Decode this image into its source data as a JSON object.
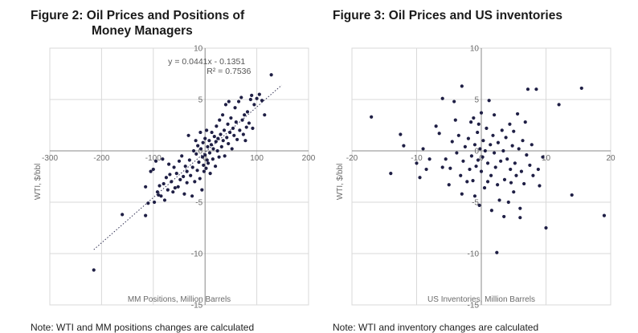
{
  "figures": [
    {
      "title_line1": "Figure 2: Oil Prices and Positions of",
      "title_line2": "Money Managers"
    },
    {
      "title": "Figure 3: Oil Prices and US inventories"
    }
  ],
  "notes": [
    "Note: WTI and MM positions changes are calculated",
    "Note: WTI and inventory changes are calculated"
  ],
  "chart_data": [
    {
      "type": "scatter",
      "title": "Figure 2: Oil Prices and Positions of Money Managers",
      "xlabel": "MM Positions, Million Barrels",
      "ylabel": "WTI, $/bbl",
      "xlim": [
        -300,
        200
      ],
      "ylim": [
        -15,
        10
      ],
      "x_ticks": [
        -300,
        -200,
        -100,
        0,
        100,
        200
      ],
      "y_ticks": [
        -15,
        -10,
        -5,
        0,
        5,
        10
      ],
      "x_tick_labels": [
        "-300",
        "-200",
        "-100",
        "0",
        "100",
        "200"
      ],
      "y_tick_labels": [
        "-15",
        "-10",
        "-5",
        "0",
        "5",
        "10"
      ],
      "grid": true,
      "trendline": {
        "type": "linear",
        "slope": 0.0441,
        "intercept": -0.1351,
        "x_range": [
          -215,
          148
        ]
      },
      "equation": "y = 0.0441x - 0.1351",
      "r_squared": "R² = 0.7536",
      "colors": {
        "points": "#1f1f45",
        "grid": "#d9d9d9",
        "axis": "#888888"
      },
      "points": [
        [
          -215,
          -11.6
        ],
        [
          -160,
          -6.2
        ],
        [
          -115,
          -6.3
        ],
        [
          -115,
          -3.5
        ],
        [
          -110,
          -5.1
        ],
        [
          -105,
          -2.0
        ],
        [
          -100,
          -1.8
        ],
        [
          -98,
          -5.0
        ],
        [
          -95,
          -1.0
        ],
        [
          -92,
          -4.0
        ],
        [
          -90,
          -4.3
        ],
        [
          -88,
          -3.4
        ],
        [
          -85,
          -4.4
        ],
        [
          -82,
          -0.8
        ],
        [
          -80,
          -3.2
        ],
        [
          -78,
          -4.8
        ],
        [
          -75,
          -2.6
        ],
        [
          -72,
          -3.8
        ],
        [
          -70,
          -1.3
        ],
        [
          -68,
          -2.3
        ],
        [
          -65,
          -3.0
        ],
        [
          -62,
          -4.0
        ],
        [
          -60,
          -1.6
        ],
        [
          -58,
          -3.6
        ],
        [
          -55,
          -2.2
        ],
        [
          -52,
          -3.5
        ],
        [
          -50,
          -1.0
        ],
        [
          -48,
          -2.8
        ],
        [
          -45,
          -0.5
        ],
        [
          -42,
          -2.5
        ],
        [
          -40,
          -4.2
        ],
        [
          -38,
          -1.5
        ],
        [
          -35,
          -2.0
        ],
        [
          -35,
          -3.1
        ],
        [
          -32,
          1.5
        ],
        [
          -30,
          -0.9
        ],
        [
          -28,
          -2.4
        ],
        [
          -25,
          -4.4
        ],
        [
          -24,
          -1.6
        ],
        [
          -22,
          0.0
        ],
        [
          -20,
          -3.0
        ],
        [
          -18,
          1.0
        ],
        [
          -17,
          -0.3
        ],
        [
          -15,
          -1.9
        ],
        [
          -14,
          0.5
        ],
        [
          -12,
          -1.1
        ],
        [
          -10,
          -2.7
        ],
        [
          -9,
          1.8
        ],
        [
          -8,
          0.2
        ],
        [
          -6,
          -3.8
        ],
        [
          -5,
          -0.6
        ],
        [
          -4,
          0.8
        ],
        [
          -3,
          -1.4
        ],
        [
          -2,
          -2.0
        ],
        [
          0,
          1.2
        ],
        [
          0,
          -0.4
        ],
        [
          2,
          -1.7
        ],
        [
          3,
          2.0
        ],
        [
          4,
          -0.9
        ],
        [
          5,
          0.4
        ],
        [
          6,
          -1.2
        ],
        [
          8,
          1.0
        ],
        [
          9,
          -0.2
        ],
        [
          10,
          -2.2
        ],
        [
          12,
          0.6
        ],
        [
          13,
          1.8
        ],
        [
          15,
          -0.8
        ],
        [
          16,
          0.2
        ],
        [
          18,
          1.4
        ],
        [
          20,
          -1.5
        ],
        [
          21,
          0.9
        ],
        [
          22,
          2.4
        ],
        [
          24,
          0.0
        ],
        [
          25,
          1.2
        ],
        [
          27,
          -0.6
        ],
        [
          28,
          3.0
        ],
        [
          30,
          1.6
        ],
        [
          32,
          0.4
        ],
        [
          34,
          3.5
        ],
        [
          35,
          1.0
        ],
        [
          37,
          2.0
        ],
        [
          38,
          -0.5
        ],
        [
          40,
          4.5
        ],
        [
          42,
          1.3
        ],
        [
          44,
          2.6
        ],
        [
          45,
          0.7
        ],
        [
          46,
          4.8
        ],
        [
          48,
          1.8
        ],
        [
          50,
          3.2
        ],
        [
          52,
          0.2
        ],
        [
          54,
          2.2
        ],
        [
          56,
          1.5
        ],
        [
          58,
          4.2
        ],
        [
          60,
          2.8
        ],
        [
          62,
          1.1
        ],
        [
          65,
          4.8
        ],
        [
          67,
          2.0
        ],
        [
          70,
          5.2
        ],
        [
          72,
          3.0
        ],
        [
          74,
          1.6
        ],
        [
          76,
          3.5
        ],
        [
          78,
          1.0
        ],
        [
          80,
          2.3
        ],
        [
          82,
          3.8
        ],
        [
          85,
          2.7
        ],
        [
          88,
          5.0
        ],
        [
          90,
          5.4
        ],
        [
          92,
          2.2
        ],
        [
          95,
          4.5
        ],
        [
          100,
          5.1
        ],
        [
          105,
          5.5
        ],
        [
          110,
          4.9
        ],
        [
          115,
          3.5
        ],
        [
          128,
          7.4
        ]
      ]
    },
    {
      "type": "scatter",
      "title": "Figure 3: Oil Prices and US inventories",
      "xlabel": "US Inventories, Million Barrels",
      "ylabel": "WTI, $/bbl",
      "xlim": [
        -20,
        20
      ],
      "ylim": [
        -15,
        10
      ],
      "x_ticks": [
        -20,
        -10,
        0,
        10,
        20
      ],
      "y_ticks": [
        -15,
        -10,
        -5,
        0,
        5,
        10
      ],
      "x_tick_labels": [
        "-20",
        "-10",
        "0",
        "10",
        "20"
      ],
      "y_tick_labels": [
        "-15",
        "-10",
        "-5",
        "0",
        "5",
        "10"
      ],
      "grid": true,
      "colors": {
        "points": "#1f1f45",
        "grid": "#d9d9d9",
        "axis": "#888888"
      },
      "points": [
        [
          -17,
          3.3
        ],
        [
          -12.5,
          1.6
        ],
        [
          -12,
          0.5
        ],
        [
          -10,
          -1.2
        ],
        [
          -9,
          0.2
        ],
        [
          -9.5,
          -2.6
        ],
        [
          -8,
          -0.8
        ],
        [
          -7,
          2.4
        ],
        [
          -6.5,
          1.7
        ],
        [
          -6,
          -1.6
        ],
        [
          -6,
          5.1
        ],
        [
          -5.5,
          -0.8
        ],
        [
          -5,
          -3.3
        ],
        [
          -4.8,
          -1.7
        ],
        [
          -4.5,
          0.9
        ],
        [
          -4.2,
          4.8
        ],
        [
          -4,
          3.0
        ],
        [
          -3.8,
          -0.2
        ],
        [
          -3.5,
          1.5
        ],
        [
          -3.2,
          -2.4
        ],
        [
          -3,
          6.3
        ],
        [
          -3,
          -4.2
        ],
        [
          -2.8,
          -1.0
        ],
        [
          -2.5,
          0.4
        ],
        [
          -2.2,
          -3.0
        ],
        [
          -2,
          1.2
        ],
        [
          -1.8,
          -1.8
        ],
        [
          -1.6,
          2.8
        ],
        [
          -1.5,
          -0.5
        ],
        [
          -1.3,
          -2.9
        ],
        [
          -1.2,
          3.2
        ],
        [
          -1,
          0.6
        ],
        [
          -1,
          -4.4
        ],
        [
          -0.8,
          -1.5
        ],
        [
          -0.6,
          1.8
        ],
        [
          -0.5,
          -0.9
        ],
        [
          -0.4,
          2.6
        ],
        [
          -0.3,
          -5.3
        ],
        [
          -0.2,
          0.2
        ],
        [
          0,
          -2.0
        ],
        [
          0,
          3.7
        ],
        [
          0.2,
          -0.6
        ],
        [
          0.3,
          1.0
        ],
        [
          0.5,
          -3.6
        ],
        [
          0.6,
          0.0
        ],
        [
          0.8,
          2.2
        ],
        [
          1,
          -1.2
        ],
        [
          1,
          -3.0
        ],
        [
          1.2,
          4.9
        ],
        [
          1.4,
          0.6
        ],
        [
          1.5,
          -2.4
        ],
        [
          1.6,
          -5.8
        ],
        [
          1.8,
          1.5
        ],
        [
          2,
          -0.2
        ],
        [
          2,
          3.5
        ],
        [
          2.2,
          -1.6
        ],
        [
          2.4,
          -9.9
        ],
        [
          2.5,
          -3.3
        ],
        [
          2.6,
          0.8
        ],
        [
          2.8,
          -4.8
        ],
        [
          3,
          -1.0
        ],
        [
          3.2,
          2.0
        ],
        [
          3.4,
          0.0
        ],
        [
          3.5,
          -6.4
        ],
        [
          3.6,
          -2.8
        ],
        [
          3.8,
          1.3
        ],
        [
          4,
          -0.8
        ],
        [
          4.2,
          -5.0
        ],
        [
          4.4,
          2.6
        ],
        [
          4.5,
          -1.8
        ],
        [
          4.6,
          -3.1
        ],
        [
          4.8,
          0.5
        ],
        [
          5,
          -4.0
        ],
        [
          5,
          1.9
        ],
        [
          5.2,
          -1.2
        ],
        [
          5.4,
          -2.4
        ],
        [
          5.6,
          3.6
        ],
        [
          5.8,
          0.2
        ],
        [
          6,
          -5.6
        ],
        [
          6,
          -6.5
        ],
        [
          6.2,
          -2.0
        ],
        [
          6.4,
          1.0
        ],
        [
          6.6,
          -3.2
        ],
        [
          6.8,
          2.8
        ],
        [
          7,
          -0.4
        ],
        [
          7.2,
          6.0
        ],
        [
          7.5,
          -1.4
        ],
        [
          7.8,
          0.6
        ],
        [
          8,
          -2.4
        ],
        [
          8.5,
          6.0
        ],
        [
          8.8,
          -1.8
        ],
        [
          9,
          -3.4
        ],
        [
          9.5,
          -0.6
        ],
        [
          10,
          -7.5
        ],
        [
          12,
          4.5
        ],
        [
          14,
          -4.3
        ],
        [
          15.5,
          6.1
        ],
        [
          19,
          -6.3
        ],
        [
          -14,
          -2.2
        ],
        [
          -8.5,
          -1.8
        ]
      ]
    }
  ]
}
